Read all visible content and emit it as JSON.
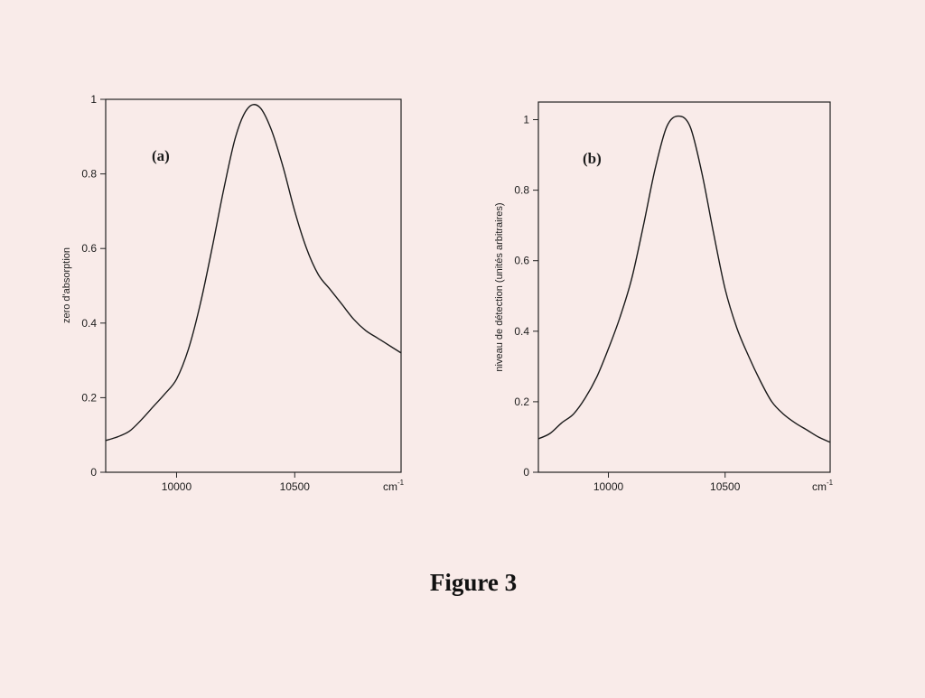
{
  "figure": {
    "caption": "Figure 3"
  },
  "chart_data": [
    {
      "type": "line",
      "panel_label": "(a)",
      "title": "",
      "ylabel": "zero d'absorption",
      "xlabel": "",
      "x_unit": "cm",
      "x_unit_exp": "-1",
      "xlim": [
        9700,
        10950
      ],
      "ylim": [
        0,
        1
      ],
      "x_ticks": [
        10000,
        10500
      ],
      "x_tick_labels": [
        "10000",
        "10500"
      ],
      "y_ticks": [
        0,
        0.2,
        0.4,
        0.6,
        0.8,
        1
      ],
      "y_tick_labels": [
        "0",
        "0.2",
        "0.4",
        "0.6",
        "0.8",
        "1"
      ],
      "grid": false,
      "legend": false,
      "line_color": "#1a1a1a",
      "series": [
        {
          "x": [
            9700,
            9750,
            9800,
            9850,
            9900,
            9950,
            10000,
            10050,
            10100,
            10150,
            10200,
            10250,
            10300,
            10350,
            10400,
            10450,
            10500,
            10550,
            10600,
            10650,
            10700,
            10750,
            10800,
            10850,
            10900,
            10950
          ],
          "y": [
            0.085,
            0.095,
            0.11,
            0.14,
            0.175,
            0.21,
            0.25,
            0.33,
            0.45,
            0.6,
            0.76,
            0.9,
            0.975,
            0.98,
            0.92,
            0.82,
            0.7,
            0.6,
            0.53,
            0.49,
            0.45,
            0.41,
            0.38,
            0.36,
            0.34,
            0.32
          ]
        }
      ]
    },
    {
      "type": "line",
      "panel_label": "(b)",
      "title": "",
      "ylabel": "niveau de détection  (unités arbitraires)",
      "xlabel": "",
      "x_unit": "cm",
      "x_unit_exp": "-1",
      "xlim": [
        9700,
        10950
      ],
      "ylim": [
        0,
        1.05
      ],
      "x_ticks": [
        10000,
        10500
      ],
      "x_tick_labels": [
        "10000",
        "10500"
      ],
      "y_ticks": [
        0,
        0.2,
        0.4,
        0.6,
        0.8,
        1
      ],
      "y_tick_labels": [
        "0",
        "0.2",
        "0.4",
        "0.6",
        "0.8",
        "1"
      ],
      "grid": false,
      "legend": false,
      "line_color": "#1a1a1a",
      "series": [
        {
          "x": [
            9700,
            9750,
            9800,
            9850,
            9900,
            9950,
            10000,
            10050,
            10100,
            10150,
            10200,
            10250,
            10300,
            10350,
            10400,
            10450,
            10500,
            10550,
            10600,
            10650,
            10700,
            10750,
            10800,
            10850,
            10900,
            10950
          ],
          "y": [
            0.095,
            0.11,
            0.14,
            0.165,
            0.21,
            0.27,
            0.35,
            0.44,
            0.55,
            0.7,
            0.86,
            0.98,
            1.01,
            0.98,
            0.85,
            0.68,
            0.52,
            0.41,
            0.33,
            0.26,
            0.2,
            0.165,
            0.14,
            0.12,
            0.1,
            0.085
          ]
        }
      ]
    }
  ]
}
